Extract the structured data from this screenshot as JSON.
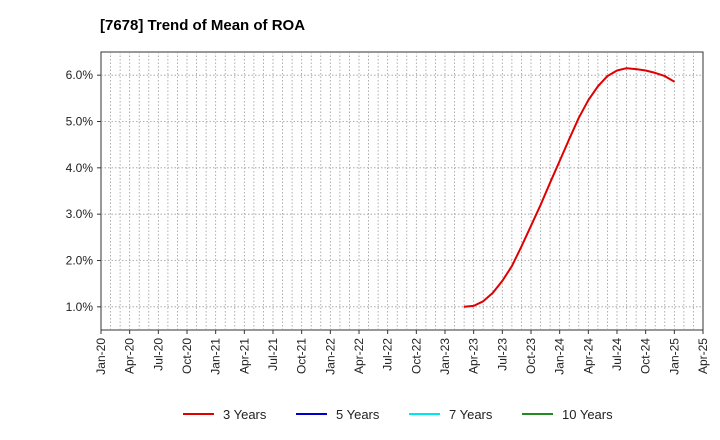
{
  "chart_data": {
    "type": "line",
    "title": "[7678]  Trend of Mean of ROA",
    "xlabel": "",
    "ylabel": "",
    "x_ticks": [
      "Jan-20",
      "Apr-20",
      "Jul-20",
      "Oct-20",
      "Jan-21",
      "Apr-21",
      "Jul-21",
      "Oct-21",
      "Jan-22",
      "Apr-22",
      "Jul-22",
      "Oct-22",
      "Jan-23",
      "Apr-23",
      "Jul-23",
      "Oct-23",
      "Jan-24",
      "Apr-24",
      "Jul-24",
      "Oct-24",
      "Jan-25",
      "Apr-25"
    ],
    "xlim": [
      "2020-01",
      "2025-04"
    ],
    "y_ticks": [
      "1.0%",
      "2.0%",
      "3.0%",
      "4.0%",
      "5.0%",
      "6.0%"
    ],
    "ylim": [
      0.5,
      6.5
    ],
    "grid": true,
    "legend_position": "bottom",
    "series": [
      {
        "name": "3 Years",
        "color": "#e00000",
        "x": [
          "2023-03",
          "2023-04",
          "2023-05",
          "2023-06",
          "2023-07",
          "2023-08",
          "2023-09",
          "2023-10",
          "2023-11",
          "2023-12",
          "2024-01",
          "2024-02",
          "2024-03",
          "2024-04",
          "2024-05",
          "2024-06",
          "2024-07",
          "2024-08",
          "2024-09",
          "2024-10",
          "2024-11",
          "2024-12",
          "2025-01"
        ],
        "values": [
          1.0,
          1.02,
          1.12,
          1.3,
          1.56,
          1.88,
          2.3,
          2.75,
          3.2,
          3.68,
          4.15,
          4.62,
          5.08,
          5.46,
          5.76,
          5.98,
          6.1,
          6.15,
          6.13,
          6.1,
          6.05,
          5.98,
          5.86
        ]
      },
      {
        "name": "5 Years",
        "color": "#0000cc",
        "x": [],
        "values": []
      },
      {
        "name": "7 Years",
        "color": "#00e5ee",
        "x": [],
        "values": []
      },
      {
        "name": "10 Years",
        "color": "#228b22",
        "x": [],
        "values": []
      }
    ]
  }
}
